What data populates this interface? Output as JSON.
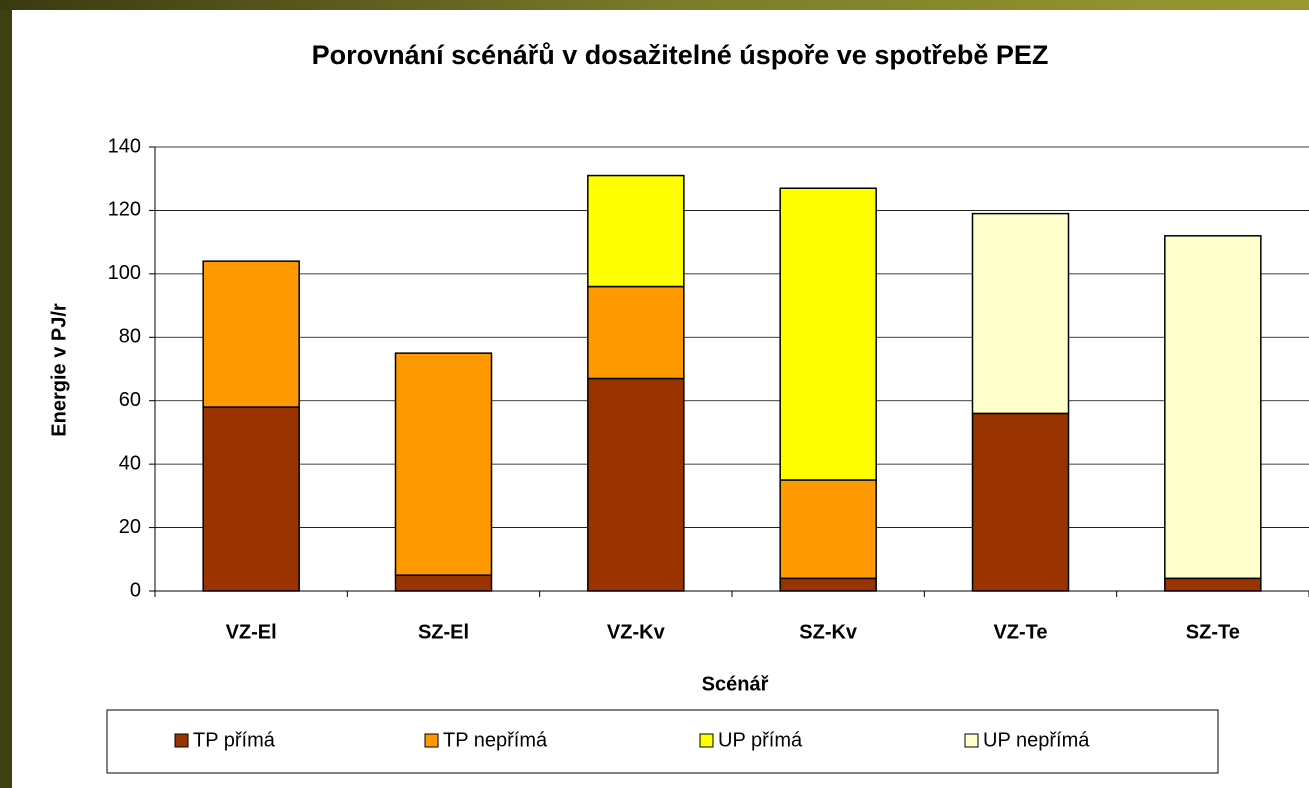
{
  "chart_data": {
    "type": "stacked_bar",
    "title": "Porovnání scénářů v dosažitelné úspoře ve spotřebě PEZ",
    "x_label": "Scénář",
    "y_label": "Energie v PJ/r",
    "categories": [
      "VZ-El",
      "SZ-El",
      "VZ-Kv",
      "SZ-Kv",
      "VZ-Te",
      "SZ-Te"
    ],
    "series": [
      {
        "name": "TP přímá",
        "color": "#993300",
        "values": [
          58,
          5,
          67,
          4,
          56,
          4
        ]
      },
      {
        "name": "TP nepřímá",
        "color": "#ff9900",
        "values": [
          46,
          70,
          29,
          31,
          0,
          0
        ]
      },
      {
        "name": "UP přímá",
        "color": "#ffff00",
        "values": [
          0,
          0,
          35,
          92,
          0,
          0
        ]
      },
      {
        "name": "UP nepřímá",
        "color": "#ffffcc",
        "values": [
          0,
          0,
          0,
          0,
          63,
          108
        ]
      }
    ],
    "ylim": [
      0,
      140
    ],
    "yticks": [
      0,
      20,
      40,
      60,
      80,
      100,
      120,
      140
    ],
    "grid": true,
    "legend": "bottom"
  }
}
